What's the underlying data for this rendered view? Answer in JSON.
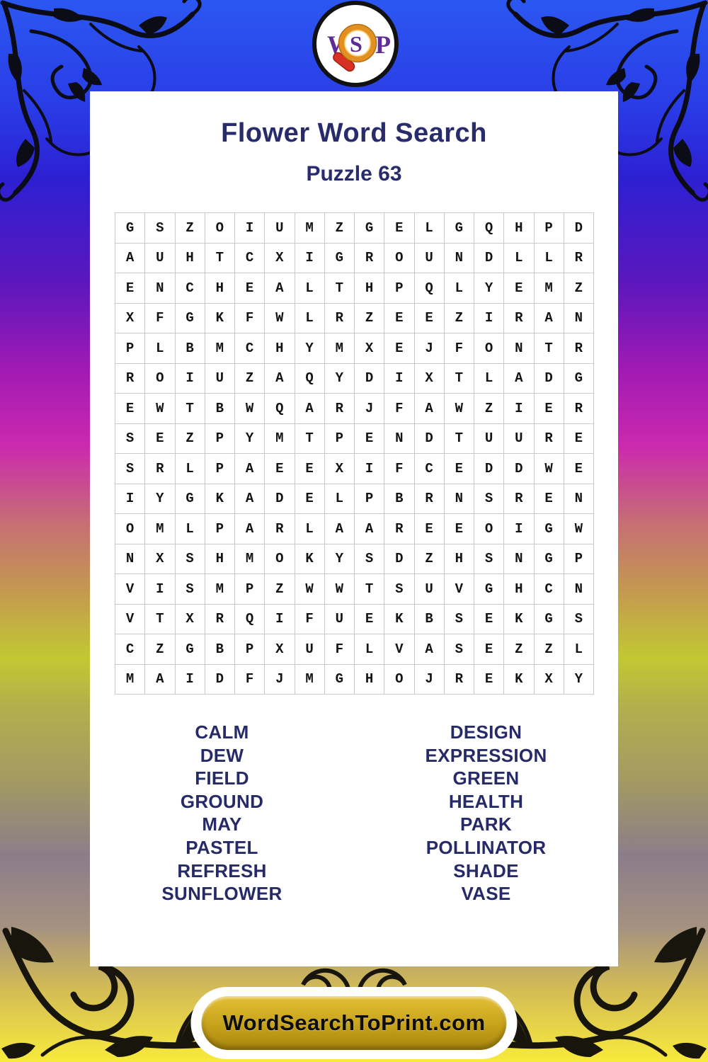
{
  "logo": {
    "letters": [
      "W",
      "S",
      "P"
    ]
  },
  "header": {
    "title": "Flower Word Search",
    "subtitle": "Puzzle 63"
  },
  "grid": {
    "size": 16,
    "rows": [
      "GSZOIUMZGELGQHPD",
      "AUHTCXIGROUNDLLR",
      "ENCHEALTHPQLYEMZ",
      "XFGKFWLRZEEZIRAN",
      "PLBMCHYMXEJFONTR",
      "ROIUZAQYDIXTLADG",
      "EWTBWQARJFAWZIER",
      "SEZPYMTPENDTUURE",
      "SRLPAEEXIFCEDDWE",
      "IYGKADELPBRNSREN",
      "OMLPARLAAREEOIGW",
      "NXSHMOKYSDZHSNGP",
      "VISMPZWWTSUVGHCN",
      "VTXRQIFUEKBSEKGS",
      "CZGBPXUFLVASEZZL",
      "MAIDFJMGHOJREKXY"
    ]
  },
  "words": {
    "left": [
      "CALM",
      "DEW",
      "FIELD",
      "GROUND",
      "MAY",
      "PASTEL",
      "REFRESH",
      "SUNFLOWER"
    ],
    "right": [
      "DESIGN",
      "EXPRESSION",
      "GREEN",
      "HEALTH",
      "PARK",
      "POLLINATOR",
      "SHADE",
      "VASE"
    ]
  },
  "footer": {
    "label": "WordSearchToPrint.com"
  },
  "colors": {
    "title_navy": "#282c6c",
    "word_navy": "#262b68",
    "grid_border": "#c9c9c9",
    "letter_black": "#141414",
    "logo_purple": "#5e2b97",
    "magnifier_orange": "#f0a23a",
    "magnifier_handle_red": "#d93025",
    "footer_gold": "#c6a11a",
    "background_top_blue": "#2b57f1",
    "background_magenta": "#cb2aad",
    "background_lime": "#c2c832",
    "background_bottom_yellow": "#f8ea3c"
  }
}
